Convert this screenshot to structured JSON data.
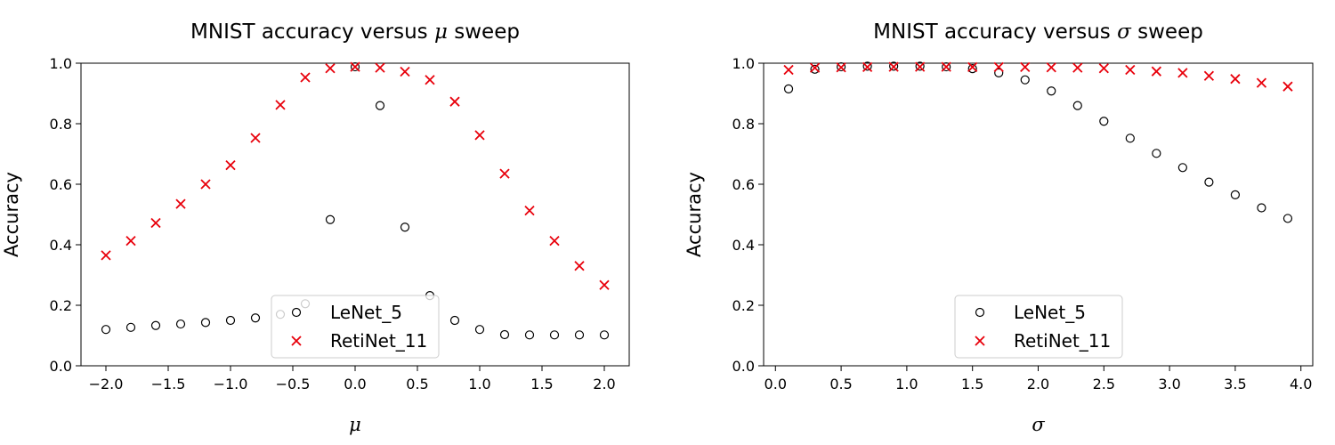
{
  "chart_data": [
    {
      "type": "scatter",
      "title_prefix": "MNIST accuracy versus ",
      "title_symbol": "μ",
      "title_suffix": " sweep",
      "xlabel": "μ",
      "ylabel": "Accuracy",
      "xlim": [
        -2.2,
        2.2
      ],
      "ylim": [
        0.0,
        1.0
      ],
      "xticks": [
        -2.0,
        -1.5,
        -1.0,
        -0.5,
        0.0,
        0.5,
        1.0,
        1.5,
        2.0
      ],
      "yticks": [
        0.0,
        0.2,
        0.4,
        0.6,
        0.8,
        1.0
      ],
      "legend_position": "lower center",
      "x": [
        -2.0,
        -1.8,
        -1.6,
        -1.4,
        -1.2,
        -1.0,
        -0.8,
        -0.6,
        -0.4,
        -0.2,
        0.0,
        0.2,
        0.4,
        0.6,
        0.8,
        1.0,
        1.2,
        1.4,
        1.6,
        1.8,
        2.0
      ],
      "series": [
        {
          "name": "LeNet_5",
          "marker": "circle",
          "color": "#000000",
          "values": [
            0.12,
            0.127,
            0.133,
            0.138,
            0.143,
            0.15,
            0.158,
            0.17,
            0.205,
            0.483,
            0.988,
            0.86,
            0.458,
            0.232,
            0.15,
            0.12,
            0.103,
            0.102,
            0.102,
            0.102,
            0.102
          ]
        },
        {
          "name": "RetiNet_11",
          "marker": "x",
          "color": "#e8000b",
          "values": [
            0.365,
            0.413,
            0.472,
            0.535,
            0.6,
            0.663,
            0.753,
            0.862,
            0.953,
            0.983,
            0.988,
            0.985,
            0.972,
            0.945,
            0.873,
            0.762,
            0.635,
            0.513,
            0.413,
            0.33,
            0.267
          ]
        }
      ]
    },
    {
      "type": "scatter",
      "title_prefix": "MNIST accuracy versus ",
      "title_symbol": "σ",
      "title_suffix": " sweep",
      "xlabel": "σ",
      "ylabel": "Accuracy",
      "xlim": [
        -0.09,
        4.09
      ],
      "ylim": [
        0.0,
        1.0
      ],
      "xticks": [
        0.0,
        0.5,
        1.0,
        1.5,
        2.0,
        2.5,
        3.0,
        3.5,
        4.0
      ],
      "yticks": [
        0.0,
        0.2,
        0.4,
        0.6,
        0.8,
        1.0
      ],
      "legend_position": "lower center",
      "x": [
        0.1,
        0.3,
        0.5,
        0.7,
        0.9,
        1.1,
        1.3,
        1.5,
        1.7,
        1.9,
        2.1,
        2.3,
        2.5,
        2.7,
        2.9,
        3.1,
        3.3,
        3.5,
        3.7,
        3.9
      ],
      "series": [
        {
          "name": "LeNet_5",
          "marker": "circle",
          "color": "#000000",
          "values": [
            0.915,
            0.98,
            0.988,
            0.99,
            0.99,
            0.99,
            0.988,
            0.982,
            0.968,
            0.945,
            0.908,
            0.86,
            0.808,
            0.752,
            0.702,
            0.655,
            0.607,
            0.565,
            0.522,
            0.487
          ]
        },
        {
          "name": "RetiNet_11",
          "marker": "x",
          "color": "#e8000b",
          "values": [
            0.978,
            0.985,
            0.986,
            0.987,
            0.988,
            0.988,
            0.988,
            0.987,
            0.987,
            0.987,
            0.986,
            0.985,
            0.983,
            0.978,
            0.973,
            0.968,
            0.958,
            0.948,
            0.935,
            0.923
          ]
        }
      ]
    }
  ]
}
